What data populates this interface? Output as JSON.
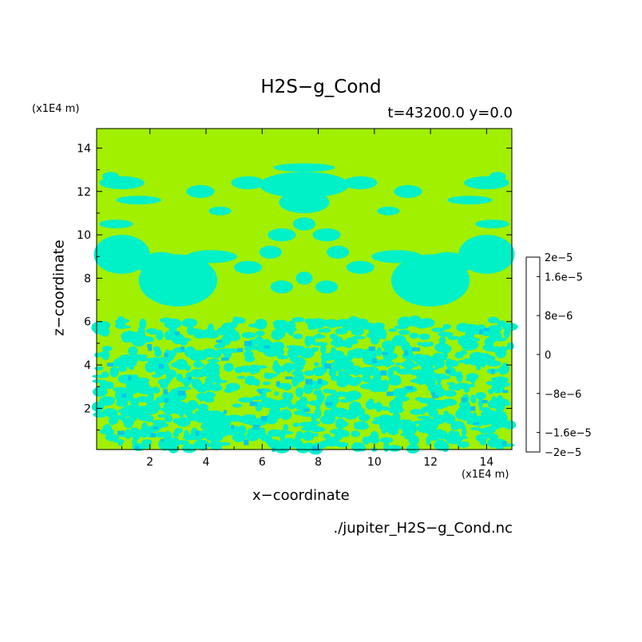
{
  "chart_data": {
    "type": "heatmap",
    "title": "H2S−g_Cond",
    "subtitle": "t=43200.0 y=0.0",
    "xlabel": "x−coordinate",
    "ylabel": "z−coordinate",
    "x_scale_label": "(x1E4 m)",
    "y_scale_label": "(x1E4 m)",
    "xlim": [
      0.1,
      14.9
    ],
    "ylim": [
      0.1,
      14.9
    ],
    "x_ticks": [
      2,
      4,
      6,
      8,
      10,
      12,
      14
    ],
    "y_ticks": [
      2,
      4,
      6,
      8,
      10,
      12,
      14
    ],
    "footer": "./jupiter_H2S−g_Cond.nc",
    "colorbar": {
      "levels": [
        -2e-05,
        -1.6e-05,
        -1.2e-05,
        -8e-06,
        -4e-06,
        0,
        4e-06,
        8e-06,
        1.2e-05,
        1.6e-05,
        2e-05
      ],
      "colors": [
        "#0000a0",
        "#0000ff",
        "#0064ff",
        "#0096ff",
        "#00c8e6",
        "#00f0c8",
        "#a0f000",
        "#ffd200",
        "#ffa000",
        "#ff6400",
        "#ff0000",
        "#ff4040"
      ],
      "tick_labels": [
        "2e−5",
        "1.6e−5",
        "8e−6",
        "0",
        "−8e−6",
        "−1.6e−5",
        "−2e−5"
      ]
    },
    "field_summary": "Dominant value 0 (lime); negative patches (-4e-6..0, cyan) throughout; dense speckle below z=6"
  }
}
